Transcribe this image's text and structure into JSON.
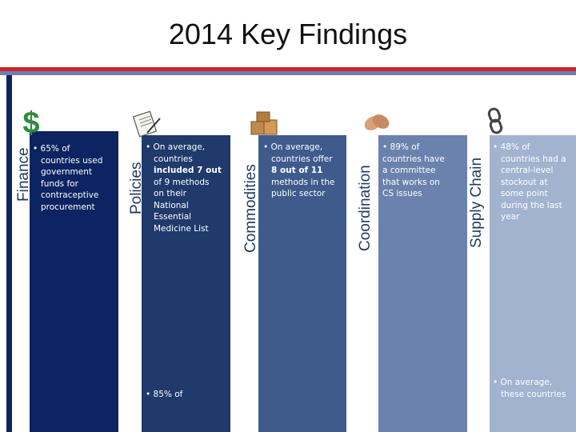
{
  "title": "2014 Key Findings",
  "colors": {
    "red_rule": "#c9252c",
    "blue_rule": "#6b7fb0",
    "finance": "#0c2461",
    "policies": "#1f3a6b",
    "commodities": "#3e5b8c",
    "coordination": "#6a82ad",
    "supply_chain": "#a2b3d0"
  },
  "panels": [
    {
      "label": "Finance",
      "icon": "dollar-icon",
      "lines": [
        "• 65% of",
        "countries used",
        "government",
        "funds for",
        "contraceptive",
        "procurement"
      ]
    },
    {
      "label": "Policies",
      "icon": "document-icon",
      "lines": [
        "• On average,",
        "countries",
        "included 7 out",
        "of 9 methods",
        "on their",
        "National",
        "Essential",
        "Medicine List"
      ],
      "bottom": "• 85% of"
    },
    {
      "label": "Commodities",
      "icon": "boxes-icon",
      "lines": [
        "• On average,",
        "countries offer",
        "8 out of 11",
        "methods in the",
        "public sector"
      ]
    },
    {
      "label": "Coordination",
      "icon": "handshake-icon",
      "lines": [
        "• 89% of",
        "countries have",
        "a committee",
        "that works on",
        "CS issues"
      ]
    },
    {
      "label": "Supply Chain",
      "icon": "chain-icon",
      "lines": [
        "• 48% of",
        "countries had a",
        "central-level",
        "stockout at",
        "some point",
        "during the last",
        "year"
      ],
      "bottom_lines": [
        "• On average,",
        "these countries"
      ]
    }
  ]
}
